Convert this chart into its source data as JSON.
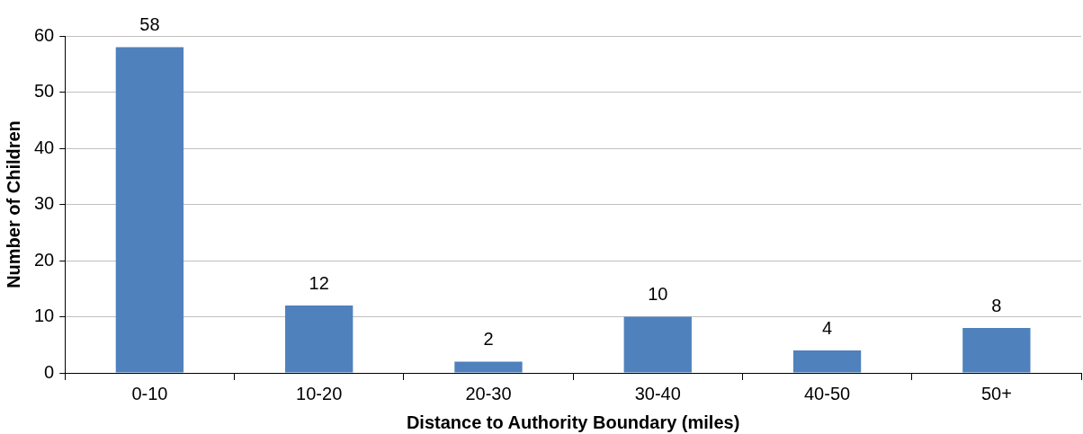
{
  "chart_data": {
    "type": "bar",
    "xlabel": "Distance to Authority Boundary (miles)",
    "ylabel": "Number of Children",
    "categories": [
      "0-10",
      "10-20",
      "20-30",
      "30-40",
      "40-50",
      "50+"
    ],
    "values": [
      58,
      12,
      2,
      10,
      4,
      8
    ],
    "color": "#4f81bd",
    "ylim": [
      0,
      60
    ],
    "yticks": [
      0,
      10,
      20,
      30,
      40,
      50,
      60
    ],
    "grid": "y",
    "legend": false,
    "data_labels": true
  }
}
